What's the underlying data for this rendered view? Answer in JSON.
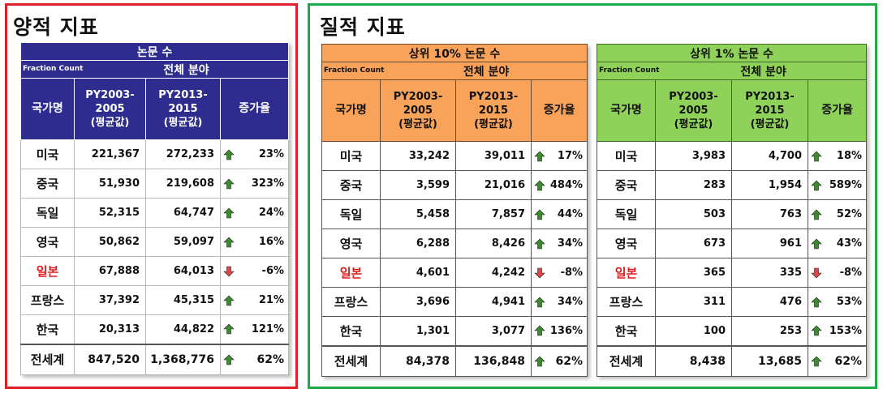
{
  "quant": {
    "title": "양적 지표",
    "table": {
      "header": "논문 수",
      "fraction_label": "Fraction Count",
      "field": "전체 분야",
      "col_country": "국가명",
      "col_p1": [
        "PY2003-",
        "2005",
        "(평균값)"
      ],
      "col_p2": [
        "PY2013-",
        "2015",
        "(평균값)"
      ],
      "col_growth": "증가율",
      "rows": [
        {
          "country": "미국",
          "v1": "221,367",
          "v2": "272,233",
          "growth": "23%",
          "dir": "up"
        },
        {
          "country": "중국",
          "v1": "51,930",
          "v2": "219,608",
          "growth": "323%",
          "dir": "up"
        },
        {
          "country": "독일",
          "v1": "52,315",
          "v2": "64,747",
          "growth": "24%",
          "dir": "up"
        },
        {
          "country": "영국",
          "v1": "50,862",
          "v2": "59,097",
          "growth": "16%",
          "dir": "up"
        },
        {
          "country": "일본",
          "v1": "67,888",
          "v2": "64,013",
          "growth": "-6%",
          "dir": "down",
          "highlight": true
        },
        {
          "country": "프랑스",
          "v1": "37,392",
          "v2": "45,315",
          "growth": "21%",
          "dir": "up"
        },
        {
          "country": "한국",
          "v1": "20,313",
          "v2": "44,822",
          "growth": "121%",
          "dir": "up"
        },
        {
          "country": "전세계",
          "v1": "847,520",
          "v2": "1,368,776",
          "growth": "62%",
          "dir": "up",
          "total": true
        }
      ]
    }
  },
  "qual": {
    "title": "질적 지표",
    "top10": {
      "header": "상위 10% 논문 수",
      "fraction_label": "Fraction Count",
      "field": "전체 분야",
      "col_country": "국가명",
      "col_p1": [
        "PY2003-",
        "2005",
        "(평균값)"
      ],
      "col_p2": [
        "PY2013-",
        "2015",
        "(평균값)"
      ],
      "col_growth": "증가율",
      "rows": [
        {
          "country": "미국",
          "v1": "33,242",
          "v2": "39,011",
          "growth": "17%",
          "dir": "up"
        },
        {
          "country": "중국",
          "v1": "3,599",
          "v2": "21,016",
          "growth": "484%",
          "dir": "up"
        },
        {
          "country": "독일",
          "v1": "5,458",
          "v2": "7,857",
          "growth": "44%",
          "dir": "up"
        },
        {
          "country": "영국",
          "v1": "6,288",
          "v2": "8,426",
          "growth": "34%",
          "dir": "up"
        },
        {
          "country": "일본",
          "v1": "4,601",
          "v2": "4,242",
          "growth": "-8%",
          "dir": "down",
          "highlight": true
        },
        {
          "country": "프랑스",
          "v1": "3,696",
          "v2": "4,941",
          "growth": "34%",
          "dir": "up"
        },
        {
          "country": "한국",
          "v1": "1,301",
          "v2": "3,077",
          "growth": "136%",
          "dir": "up"
        },
        {
          "country": "전세계",
          "v1": "84,378",
          "v2": "136,848",
          "growth": "62%",
          "dir": "up",
          "total": true
        }
      ]
    },
    "top1": {
      "header": "상위 1% 논문 수",
      "fraction_label": "Fraction Count",
      "field": "전체 분야",
      "col_country": "국가명",
      "col_p1": [
        "PY2003-",
        "2005",
        "(평균값)"
      ],
      "col_p2": [
        "PY2013-",
        "2015",
        "(평균값)"
      ],
      "col_growth": "증가율",
      "rows": [
        {
          "country": "미국",
          "v1": "3,983",
          "v2": "4,700",
          "growth": "18%",
          "dir": "up"
        },
        {
          "country": "중국",
          "v1": "283",
          "v2": "1,954",
          "growth": "589%",
          "dir": "up"
        },
        {
          "country": "독일",
          "v1": "503",
          "v2": "763",
          "growth": "52%",
          "dir": "up"
        },
        {
          "country": "영국",
          "v1": "673",
          "v2": "961",
          "growth": "43%",
          "dir": "up"
        },
        {
          "country": "일본",
          "v1": "365",
          "v2": "335",
          "growth": "-8%",
          "dir": "down",
          "highlight": true
        },
        {
          "country": "프랑스",
          "v1": "311",
          "v2": "476",
          "growth": "53%",
          "dir": "up"
        },
        {
          "country": "한국",
          "v1": "100",
          "v2": "253",
          "growth": "153%",
          "dir": "up"
        },
        {
          "country": "전세계",
          "v1": "8,438",
          "v2": "13,685",
          "growth": "62%",
          "dir": "up",
          "total": true
        }
      ]
    }
  },
  "colors": {
    "quant_border": "#e0202a",
    "qual_border": "#1faa4a",
    "blue_header": "#2e2d8f",
    "orange_header": "#f8a25a",
    "green_header": "#8fd25a",
    "arrow_up": "#3d8b2f",
    "arrow_down": "#d84a4a",
    "highlight_text": "#e01c1c"
  }
}
